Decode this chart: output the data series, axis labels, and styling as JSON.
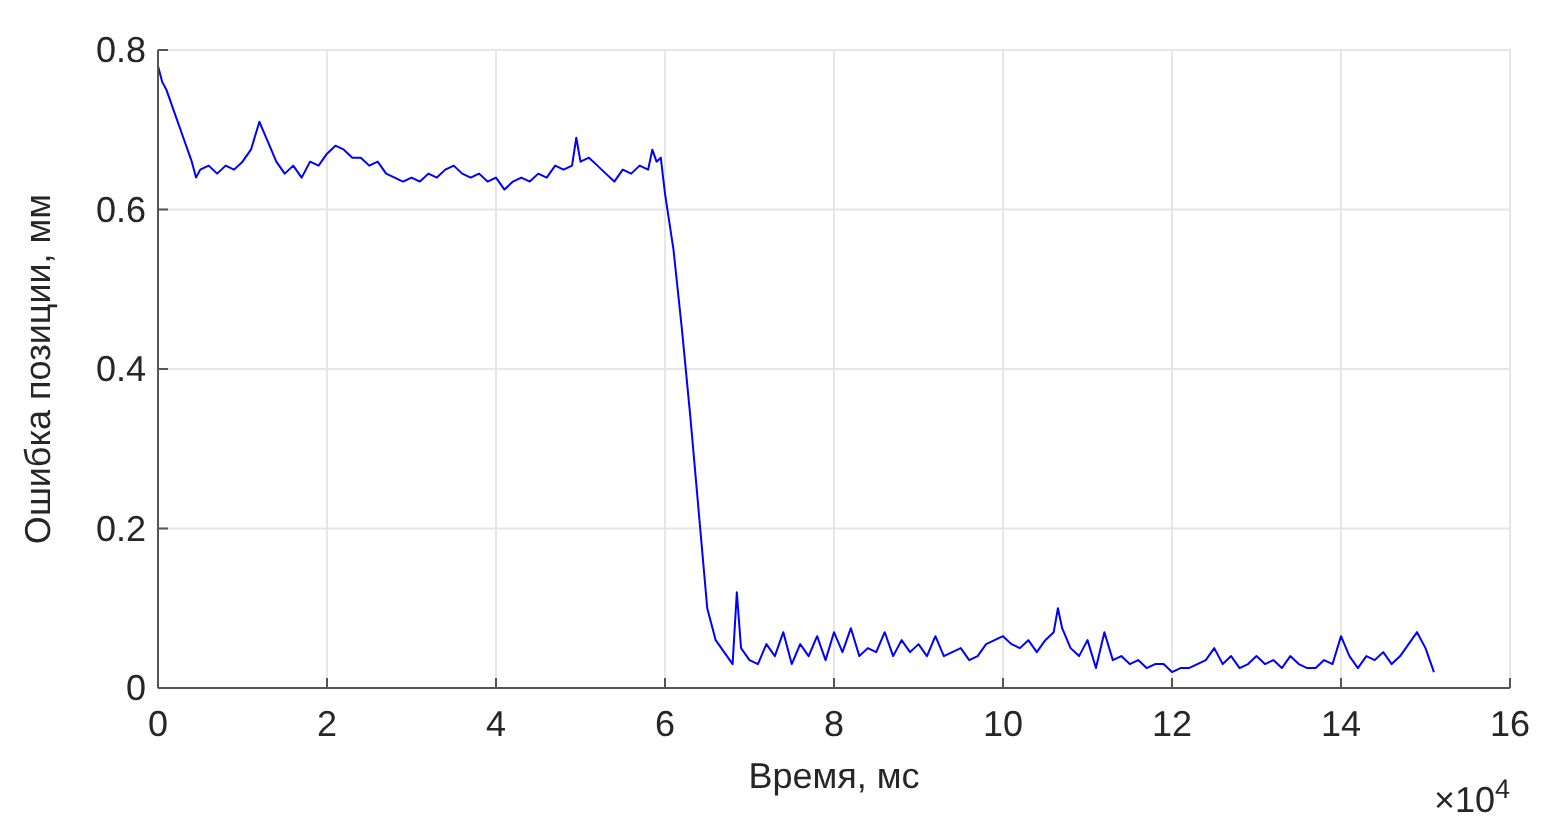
{
  "chart_data": {
    "type": "line",
    "xlabel": "Время, мс",
    "ylabel": "Ошибка позиции, мм",
    "annotations": [
      "×10$^{4}$"
    ],
    "xlim": [
      0,
      16
    ],
    "ylim": [
      0,
      0.8
    ],
    "xticks": [
      0,
      2,
      4,
      6,
      8,
      10,
      12,
      14,
      16
    ],
    "yticks": [
      0,
      0.2,
      0.4,
      0.6,
      0.8
    ],
    "grid": true,
    "marker": "none",
    "line_style": "solid",
    "series": [
      {
        "color": "#0000ff",
        "x": [
          0,
          0.05,
          0.1,
          0.2,
          0.3,
          0.4,
          0.45,
          0.5,
          0.6,
          0.7,
          0.8,
          0.9,
          1.0,
          1.1,
          1.2,
          1.3,
          1.4,
          1.5,
          1.6,
          1.7,
          1.8,
          1.9,
          2.0,
          2.1,
          2.2,
          2.3,
          2.4,
          2.5,
          2.6,
          2.7,
          2.8,
          2.9,
          3.0,
          3.1,
          3.2,
          3.3,
          3.4,
          3.5,
          3.6,
          3.7,
          3.8,
          3.9,
          4.0,
          4.1,
          4.2,
          4.3,
          4.4,
          4.5,
          4.6,
          4.7,
          4.8,
          4.9,
          4.95,
          5.0,
          5.1,
          5.2,
          5.3,
          5.4,
          5.5,
          5.6,
          5.7,
          5.8,
          5.85,
          5.9,
          5.95,
          6.0,
          6.1,
          6.2,
          6.3,
          6.4,
          6.5,
          6.6,
          6.7,
          6.8,
          6.85,
          6.9,
          7.0,
          7.1,
          7.2,
          7.3,
          7.4,
          7.5,
          7.6,
          7.7,
          7.8,
          7.9,
          8.0,
          8.1,
          8.2,
          8.3,
          8.4,
          8.5,
          8.6,
          8.7,
          8.8,
          8.9,
          9.0,
          9.1,
          9.2,
          9.3,
          9.4,
          9.5,
          9.6,
          9.7,
          9.8,
          9.9,
          10.0,
          10.1,
          10.2,
          10.3,
          10.4,
          10.5,
          10.6,
          10.65,
          10.7,
          10.8,
          10.9,
          11.0,
          11.1,
          11.2,
          11.3,
          11.4,
          11.5,
          11.6,
          11.7,
          11.8,
          11.9,
          12.0,
          12.1,
          12.2,
          12.3,
          12.4,
          12.5,
          12.6,
          12.7,
          12.8,
          12.9,
          13.0,
          13.1,
          13.2,
          13.3,
          13.4,
          13.5,
          13.6,
          13.7,
          13.8,
          13.9,
          14.0,
          14.1,
          14.2,
          14.3,
          14.4,
          14.5,
          14.6,
          14.7,
          14.8,
          14.9,
          15.0,
          15.1
        ],
        "values": [
          0.78,
          0.76,
          0.75,
          0.72,
          0.69,
          0.66,
          0.64,
          0.65,
          0.655,
          0.645,
          0.655,
          0.65,
          0.66,
          0.675,
          0.71,
          0.685,
          0.66,
          0.645,
          0.655,
          0.64,
          0.66,
          0.655,
          0.67,
          0.68,
          0.675,
          0.665,
          0.665,
          0.655,
          0.66,
          0.645,
          0.64,
          0.635,
          0.64,
          0.635,
          0.645,
          0.64,
          0.65,
          0.655,
          0.645,
          0.64,
          0.645,
          0.635,
          0.64,
          0.625,
          0.635,
          0.64,
          0.635,
          0.645,
          0.64,
          0.655,
          0.65,
          0.655,
          0.69,
          0.66,
          0.665,
          0.655,
          0.645,
          0.635,
          0.65,
          0.645,
          0.655,
          0.65,
          0.675,
          0.66,
          0.665,
          0.62,
          0.55,
          0.45,
          0.34,
          0.22,
          0.1,
          0.06,
          0.045,
          0.03,
          0.12,
          0.05,
          0.035,
          0.03,
          0.055,
          0.04,
          0.07,
          0.03,
          0.055,
          0.04,
          0.065,
          0.035,
          0.07,
          0.045,
          0.075,
          0.04,
          0.05,
          0.045,
          0.07,
          0.04,
          0.06,
          0.045,
          0.055,
          0.04,
          0.065,
          0.04,
          0.045,
          0.05,
          0.035,
          0.04,
          0.055,
          0.06,
          0.065,
          0.055,
          0.05,
          0.06,
          0.045,
          0.06,
          0.07,
          0.1,
          0.075,
          0.05,
          0.04,
          0.06,
          0.025,
          0.07,
          0.035,
          0.04,
          0.03,
          0.035,
          0.025,
          0.03,
          0.03,
          0.02,
          0.025,
          0.025,
          0.03,
          0.035,
          0.05,
          0.03,
          0.04,
          0.025,
          0.03,
          0.04,
          0.03,
          0.035,
          0.025,
          0.04,
          0.03,
          0.025,
          0.025,
          0.035,
          0.03,
          0.065,
          0.04,
          0.025,
          0.04,
          0.035,
          0.045,
          0.03,
          0.04,
          0.055,
          0.07,
          0.05,
          0.02
        ]
      }
    ]
  }
}
